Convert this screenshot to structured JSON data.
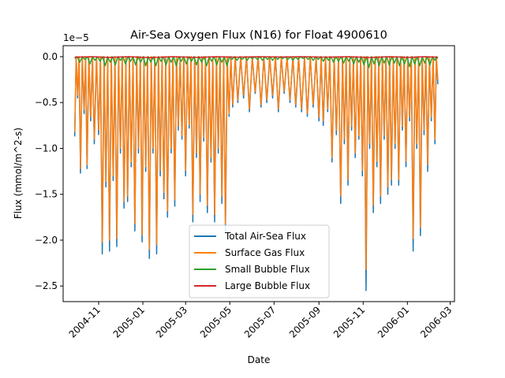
{
  "chart_data": {
    "type": "line",
    "title": "Air-Sea Oxygen Flux (N16) for Float 4900610",
    "xlabel": "Date",
    "ylabel": "Flux (mmol/m^2-s)",
    "y_offset_label": "1e−5",
    "y_scale_exponent": -5,
    "xlim": [
      "2004-09-13",
      "2006-03-07"
    ],
    "ylim": [
      -2.67,
      0.12
    ],
    "x_ticks": [
      {
        "date": "2004-11-01",
        "label": "2004-11"
      },
      {
        "date": "2005-01-01",
        "label": "2005-01"
      },
      {
        "date": "2005-03-01",
        "label": "2005-03"
      },
      {
        "date": "2005-05-01",
        "label": "2005-05"
      },
      {
        "date": "2005-07-01",
        "label": "2005-07"
      },
      {
        "date": "2005-09-01",
        "label": "2005-09"
      },
      {
        "date": "2005-11-01",
        "label": "2005-11"
      },
      {
        "date": "2006-01-01",
        "label": "2006-01"
      },
      {
        "date": "2006-03-01",
        "label": "2006-03"
      }
    ],
    "y_ticks": [
      {
        "value": 0.0,
        "label": "0.0"
      },
      {
        "value": -0.5,
        "label": "−0.5"
      },
      {
        "value": -1.0,
        "label": "−1.0"
      },
      {
        "value": -1.5,
        "label": "−1.5"
      },
      {
        "value": -2.0,
        "label": "−2.0"
      },
      {
        "value": -2.5,
        "label": "−2.5"
      }
    ],
    "grid": false,
    "legend_position": "lower-center",
    "series": [
      {
        "name": "Total Air-Sea Flux",
        "color": "#1f77b4",
        "x": [
          "2004-09-29",
          "2004-10-03",
          "2004-10-07",
          "2004-10-12",
          "2004-10-16",
          "2004-10-21",
          "2004-10-26",
          "2004-11-01",
          "2004-11-06",
          "2004-11-11",
          "2004-11-16",
          "2004-11-21",
          "2004-11-26",
          "2004-12-01",
          "2004-12-06",
          "2004-12-11",
          "2004-12-16",
          "2004-12-21",
          "2004-12-26",
          "2004-12-31",
          "2005-01-05",
          "2005-01-10",
          "2005-01-15",
          "2005-01-20",
          "2005-01-25",
          "2005-01-30",
          "2005-02-04",
          "2005-02-09",
          "2005-02-14",
          "2005-02-19",
          "2005-02-24",
          "2005-03-01",
          "2005-03-06",
          "2005-03-11",
          "2005-03-16",
          "2005-03-21",
          "2005-03-26",
          "2005-03-31",
          "2005-04-05",
          "2005-04-10",
          "2005-04-15",
          "2005-04-20",
          "2005-04-25",
          "2005-04-30",
          "2005-05-05",
          "2005-05-12",
          "2005-05-20",
          "2005-05-28",
          "2005-06-05",
          "2005-06-13",
          "2005-06-21",
          "2005-06-29",
          "2005-07-07",
          "2005-07-15",
          "2005-07-23",
          "2005-07-31",
          "2005-08-08",
          "2005-08-16",
          "2005-08-24",
          "2005-09-01",
          "2005-09-07",
          "2005-09-13",
          "2005-09-19",
          "2005-09-25",
          "2005-10-01",
          "2005-10-06",
          "2005-10-11",
          "2005-10-16",
          "2005-10-21",
          "2005-10-26",
          "2005-10-31",
          "2005-11-05",
          "2005-11-10",
          "2005-11-15",
          "2005-11-20",
          "2005-11-25",
          "2005-11-30",
          "2005-12-05",
          "2005-12-10",
          "2005-12-15",
          "2005-12-20",
          "2005-12-25",
          "2005-12-30",
          "2006-01-04",
          "2006-01-09",
          "2006-01-14",
          "2006-01-19",
          "2006-01-24",
          "2006-01-29",
          "2006-02-03",
          "2006-02-08",
          "2006-02-12"
        ],
        "y": [
          -0.87,
          -0.45,
          -1.27,
          -0.62,
          -1.22,
          -0.7,
          -0.95,
          -0.85,
          -2.15,
          -1.42,
          -2.12,
          -1.35,
          -2.07,
          -1.05,
          -1.65,
          -1.58,
          -1.2,
          -1.9,
          -1.05,
          -2.02,
          -1.25,
          -2.2,
          -1.05,
          -2.15,
          -1.3,
          -1.55,
          -1.75,
          -1.05,
          -1.63,
          -0.8,
          -0.9,
          -1.3,
          -0.78,
          -1.8,
          -1.1,
          -1.58,
          -0.92,
          -1.7,
          -1.15,
          -1.8,
          -1.05,
          -1.6,
          -1.9,
          -0.65,
          -0.55,
          -0.5,
          -0.45,
          -0.6,
          -0.4,
          -0.55,
          -0.5,
          -0.45,
          -0.6,
          -0.4,
          -0.5,
          -0.55,
          -0.6,
          -0.65,
          -0.55,
          -0.7,
          -0.75,
          -0.6,
          -1.15,
          -0.85,
          -1.6,
          -0.95,
          -1.4,
          -0.8,
          -1.1,
          -0.9,
          -1.3,
          -2.55,
          -1.0,
          -1.7,
          -1.2,
          -1.6,
          -0.9,
          -1.5,
          -1.4,
          -1.0,
          -1.4,
          -0.8,
          -1.2,
          -0.7,
          -2.12,
          -1.0,
          -1.95,
          -0.85,
          -1.25,
          -0.7,
          -0.95,
          -0.3
        ]
      },
      {
        "name": "Surface Gas Flux",
        "color": "#ff7f0e",
        "x": [
          "2004-09-29",
          "2004-10-03",
          "2004-10-07",
          "2004-10-12",
          "2004-10-16",
          "2004-10-21",
          "2004-10-26",
          "2004-11-01",
          "2004-11-06",
          "2004-11-11",
          "2004-11-16",
          "2004-11-21",
          "2004-11-26",
          "2004-12-01",
          "2004-12-06",
          "2004-12-11",
          "2004-12-16",
          "2004-12-21",
          "2004-12-26",
          "2004-12-31",
          "2005-01-05",
          "2005-01-10",
          "2005-01-15",
          "2005-01-20",
          "2005-01-25",
          "2005-01-30",
          "2005-02-04",
          "2005-02-09",
          "2005-02-14",
          "2005-02-19",
          "2005-02-24",
          "2005-03-01",
          "2005-03-06",
          "2005-03-11",
          "2005-03-16",
          "2005-03-21",
          "2005-03-26",
          "2005-03-31",
          "2005-04-05",
          "2005-04-10",
          "2005-04-15",
          "2005-04-20",
          "2005-04-25",
          "2005-04-30",
          "2005-05-05",
          "2005-05-12",
          "2005-05-20",
          "2005-05-28",
          "2005-06-05",
          "2005-06-13",
          "2005-06-21",
          "2005-06-29",
          "2005-07-07",
          "2005-07-15",
          "2005-07-23",
          "2005-07-31",
          "2005-08-08",
          "2005-08-16",
          "2005-08-24",
          "2005-09-01",
          "2005-09-07",
          "2005-09-13",
          "2005-09-19",
          "2005-09-25",
          "2005-10-01",
          "2005-10-06",
          "2005-10-11",
          "2005-10-16",
          "2005-10-21",
          "2005-10-26",
          "2005-10-31",
          "2005-11-05",
          "2005-11-10",
          "2005-11-15",
          "2005-11-20",
          "2005-11-25",
          "2005-11-30",
          "2005-12-05",
          "2005-12-10",
          "2005-12-15",
          "2005-12-20",
          "2005-12-25",
          "2005-12-30",
          "2006-01-04",
          "2006-01-09",
          "2006-01-14",
          "2006-01-19",
          "2006-01-24",
          "2006-01-29",
          "2006-02-03",
          "2006-02-08",
          "2006-02-12"
        ],
        "y": [
          -0.82,
          -0.42,
          -1.22,
          -0.58,
          -1.18,
          -0.66,
          -0.9,
          -0.8,
          -2.02,
          -1.36,
          -2.0,
          -1.3,
          -1.98,
          -1.0,
          -1.58,
          -1.52,
          -1.15,
          -1.82,
          -1.0,
          -1.94,
          -1.2,
          -2.1,
          -1.0,
          -2.05,
          -1.24,
          -1.48,
          -1.68,
          -1.0,
          -1.56,
          -0.76,
          -0.86,
          -1.24,
          -0.74,
          -1.72,
          -1.05,
          -1.5,
          -0.88,
          -1.62,
          -1.1,
          -1.72,
          -1.0,
          -1.52,
          -1.82,
          -0.62,
          -0.52,
          -0.47,
          -0.42,
          -0.57,
          -0.38,
          -0.52,
          -0.47,
          -0.42,
          -0.57,
          -0.38,
          -0.47,
          -0.52,
          -0.57,
          -0.62,
          -0.52,
          -0.66,
          -0.7,
          -0.57,
          -1.1,
          -0.8,
          -1.52,
          -0.9,
          -1.34,
          -0.76,
          -1.05,
          -0.86,
          -1.24,
          -2.32,
          -0.95,
          -1.62,
          -1.14,
          -1.52,
          -0.86,
          -1.42,
          -1.34,
          -0.95,
          -1.34,
          -0.76,
          -1.14,
          -0.66,
          -1.98,
          -0.95,
          -1.86,
          -0.8,
          -1.18,
          -0.66,
          -0.9,
          -0.25
        ]
      },
      {
        "name": "Small Bubble Flux",
        "color": "#2ca02c",
        "x": [
          "2004-09-29",
          "2004-10-06",
          "2004-10-13",
          "2004-10-20",
          "2004-10-27",
          "2004-11-03",
          "2004-11-10",
          "2004-11-17",
          "2004-11-24",
          "2004-12-01",
          "2004-12-08",
          "2004-12-15",
          "2004-12-22",
          "2004-12-29",
          "2005-01-05",
          "2005-01-12",
          "2005-01-19",
          "2005-01-26",
          "2005-02-02",
          "2005-02-09",
          "2005-02-16",
          "2005-02-23",
          "2005-03-02",
          "2005-03-09",
          "2005-03-16",
          "2005-03-23",
          "2005-03-30",
          "2005-04-06",
          "2005-04-13",
          "2005-04-20",
          "2005-04-27",
          "2005-05-04",
          "2005-05-11",
          "2005-05-18",
          "2005-05-25",
          "2005-06-01",
          "2005-06-08",
          "2005-06-15",
          "2005-06-22",
          "2005-06-29",
          "2005-07-06",
          "2005-07-13",
          "2005-07-20",
          "2005-07-27",
          "2005-08-03",
          "2005-08-10",
          "2005-08-17",
          "2005-08-24",
          "2005-08-31",
          "2005-09-07",
          "2005-09-14",
          "2005-09-21",
          "2005-09-28",
          "2005-10-05",
          "2005-10-12",
          "2005-10-19",
          "2005-10-26",
          "2005-11-02",
          "2005-11-09",
          "2005-11-16",
          "2005-11-23",
          "2005-11-30",
          "2005-12-07",
          "2005-12-14",
          "2005-12-21",
          "2005-12-28",
          "2006-01-04",
          "2006-01-11",
          "2006-01-18",
          "2006-01-25",
          "2006-02-01",
          "2006-02-08",
          "2006-02-12"
        ],
        "y": [
          -0.02,
          -0.06,
          -0.03,
          -0.08,
          -0.04,
          -0.05,
          -0.1,
          -0.06,
          -0.09,
          -0.04,
          -0.08,
          -0.05,
          -0.09,
          -0.06,
          -0.1,
          -0.06,
          -0.1,
          -0.05,
          -0.09,
          -0.06,
          -0.1,
          -0.05,
          -0.08,
          -0.05,
          -0.09,
          -0.06,
          -0.1,
          -0.05,
          -0.09,
          -0.06,
          -0.1,
          -0.03,
          -0.04,
          -0.03,
          -0.04,
          -0.02,
          -0.03,
          -0.04,
          -0.03,
          -0.04,
          -0.03,
          -0.02,
          -0.03,
          -0.04,
          -0.03,
          -0.02,
          -0.03,
          -0.04,
          -0.03,
          -0.05,
          -0.04,
          -0.06,
          -0.05,
          -0.07,
          -0.05,
          -0.08,
          -0.06,
          -0.09,
          -0.12,
          -0.08,
          -0.1,
          -0.07,
          -0.09,
          -0.07,
          -0.1,
          -0.08,
          -0.11,
          -0.08,
          -0.1,
          -0.07,
          -0.09,
          -0.04,
          -0.02
        ]
      },
      {
        "name": "Large Bubble Flux",
        "color": "#d62728",
        "x": [
          "2004-09-29",
          "2004-11-15",
          "2005-01-10",
          "2005-03-15",
          "2005-05-10",
          "2005-07-10",
          "2005-09-10",
          "2005-11-10",
          "2006-01-05",
          "2006-02-12"
        ],
        "y": [
          -0.005,
          -0.008,
          -0.01,
          -0.008,
          -0.005,
          -0.004,
          -0.005,
          -0.009,
          -0.008,
          -0.005
        ]
      }
    ]
  }
}
